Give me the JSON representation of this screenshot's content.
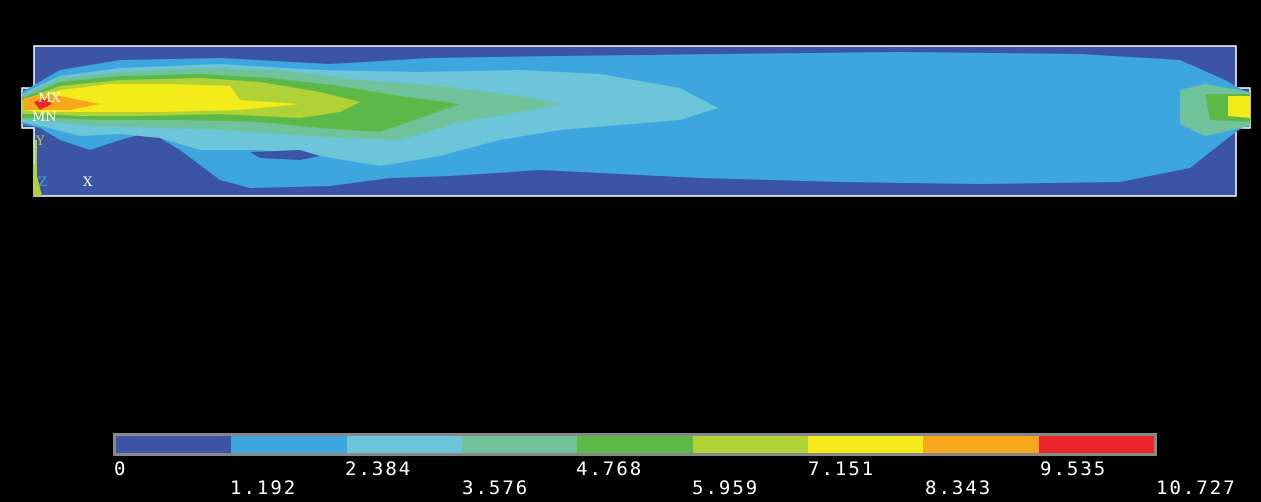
{
  "plot": {
    "markers": {
      "max": "MX",
      "min": "MN"
    },
    "axes": {
      "y": "Y",
      "z": "Z",
      "x": "X"
    }
  },
  "legend": {
    "colors": [
      "#3b54a4",
      "#3ea6df",
      "#6cc5d9",
      "#70c29a",
      "#5db947",
      "#b0d236",
      "#f4ec1a",
      "#f6a71c",
      "#e9262a"
    ],
    "upper_labels": [
      "0",
      "2.384",
      "4.768",
      "7.151",
      "9.535"
    ],
    "lower_labels": [
      "1.192",
      "3.576",
      "5.959",
      "8.343",
      "10.727"
    ]
  }
}
